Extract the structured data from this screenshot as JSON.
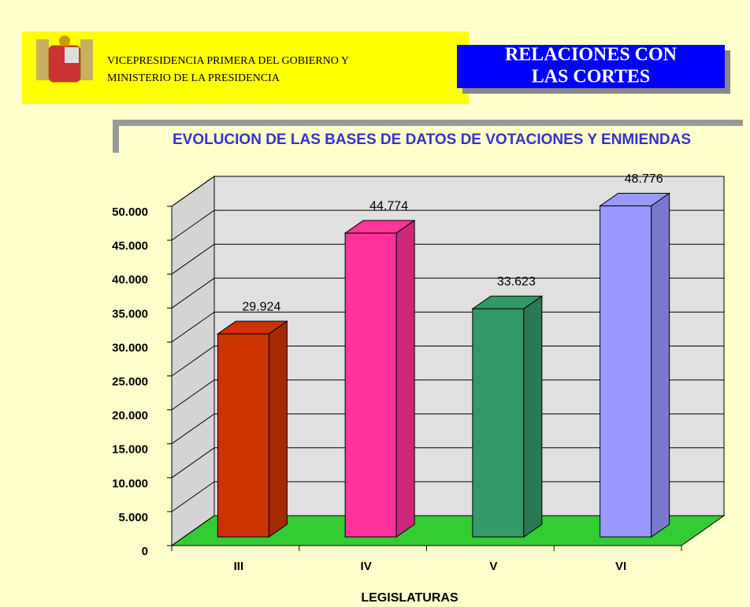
{
  "header": {
    "ministry": [
      "VICEPRESIDENCIA PRIMERA DEL GOBIERNO Y",
      "MINISTERIO DE LA PRESIDENCIA"
    ],
    "section": [
      "RELACIONES CON",
      "LAS CORTES"
    ]
  },
  "chart_data": {
    "type": "bar3d",
    "title": "EVOLUCION DE LAS BASES DE DATOS DE VOTACIONES Y ENMIENDAS",
    "x_label": "LEGISLATURAS",
    "categories": [
      "III",
      "IV",
      "V",
      "VI"
    ],
    "values": [
      29924,
      44774,
      33623,
      48776
    ],
    "value_labels": [
      "29.924",
      "44.774",
      "33.623",
      "48.776"
    ],
    "colors": [
      "#cc3300",
      "#ff3399",
      "#339966",
      "#9999ff"
    ],
    "ylim": [
      0,
      50000
    ],
    "yticks": [
      0,
      {
        "value": 5000,
        "label": "5.000"
      },
      {
        "value": 10000,
        "label": "10.000"
      },
      {
        "value": 15000,
        "label": "15.000"
      },
      {
        "value": 20000,
        "label": "20.000"
      },
      {
        "value": 25000,
        "label": "25.000"
      },
      {
        "value": 30000,
        "label": "30.000"
      },
      {
        "value": 35000,
        "label": "35.000"
      },
      {
        "value": 40000,
        "label": "40.000"
      },
      {
        "value": 45000,
        "label": "45.000"
      },
      {
        "value": 50000,
        "label": "50.000"
      }
    ],
    "grid": true
  }
}
